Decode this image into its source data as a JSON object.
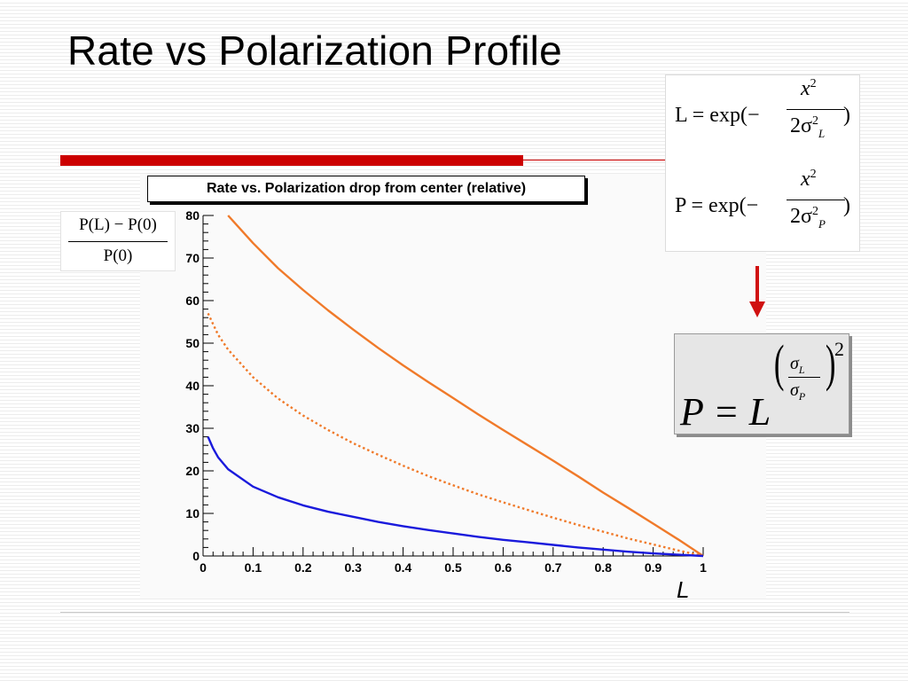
{
  "slide": {
    "title": "Rate vs Polarization Profile",
    "accent_color": "#cc0000"
  },
  "formulas": {
    "eq1_lhs": "L = exp(−",
    "eq1_num": "x",
    "eq1_num_exp": "2",
    "eq1_den": "2σ",
    "eq1_den_exp": "2",
    "eq1_den_sub": "L",
    "eq1_close": ")",
    "eq2_lhs": "P = exp(−",
    "eq2_num": "x",
    "eq2_num_exp": "2",
    "eq2_den": "2σ",
    "eq2_den_exp": "2",
    "eq2_den_sub": "P",
    "eq2_close": ")",
    "arrow_icon": "down-arrow-icon",
    "result_base": "P = L",
    "result_num": "σ",
    "result_num_sub": "L",
    "result_den": "σ",
    "result_den_sub": "P",
    "result_pow": "2"
  },
  "chart_data": {
    "type": "line",
    "title": "Rate vs. Polarization drop from center (relative)",
    "ylabel_num": "P(L) − P(0)",
    "ylabel_den": "P(0)",
    "xlabel": "L",
    "xlim": [
      0,
      1
    ],
    "ylim": [
      0,
      80
    ],
    "xticks": [
      "0",
      "0.1",
      "0.2",
      "0.3",
      "0.4",
      "0.5",
      "0.6",
      "0.7",
      "0.8",
      "0.9",
      "1"
    ],
    "yticks": [
      "0",
      "10",
      "20",
      "30",
      "40",
      "50",
      "60",
      "70",
      "80"
    ],
    "grid": false,
    "series": [
      {
        "style": "solid",
        "color": "#f07a2a",
        "x": [
          0.05,
          0.1,
          0.15,
          0.2,
          0.25,
          0.3,
          0.35,
          0.4,
          0.45,
          0.5,
          0.55,
          0.6,
          0.65,
          0.7,
          0.75,
          0.8,
          0.85,
          0.9,
          0.95,
          1.0
        ],
        "y": [
          80,
          73.5,
          67.6,
          62.5,
          57.7,
          53.2,
          48.9,
          44.8,
          40.9,
          37.1,
          33.3,
          29.6,
          26.0,
          22.4,
          18.7,
          14.9,
          11.3,
          7.6,
          3.9,
          0
        ]
      },
      {
        "style": "dotted",
        "color": "#f07a2a",
        "x": [
          0.01,
          0.03,
          0.05,
          0.1,
          0.15,
          0.2,
          0.25,
          0.3,
          0.35,
          0.4,
          0.45,
          0.5,
          0.55,
          0.6,
          0.65,
          0.7,
          0.75,
          0.8,
          0.85,
          0.9,
          0.95,
          1.0
        ],
        "y": [
          57,
          52,
          48.5,
          42,
          37,
          33,
          29.6,
          26.5,
          23.8,
          21.2,
          18.8,
          16.6,
          14.5,
          12.6,
          10.8,
          9.0,
          7.3,
          5.7,
          4.1,
          2.7,
          1.3,
          0
        ]
      },
      {
        "style": "solid",
        "color": "#1a1adc",
        "x": [
          0.01,
          0.02,
          0.03,
          0.05,
          0.1,
          0.15,
          0.2,
          0.25,
          0.3,
          0.35,
          0.4,
          0.45,
          0.5,
          0.55,
          0.6,
          0.65,
          0.7,
          0.75,
          0.8,
          0.85,
          0.9,
          0.95,
          1.0
        ],
        "y": [
          28,
          25.3,
          23.2,
          20.4,
          16.3,
          13.8,
          11.9,
          10.4,
          9.2,
          8.0,
          7.0,
          6.1,
          5.3,
          4.5,
          3.8,
          3.2,
          2.6,
          2.0,
          1.5,
          1.0,
          0.6,
          0.3,
          0
        ]
      }
    ]
  }
}
